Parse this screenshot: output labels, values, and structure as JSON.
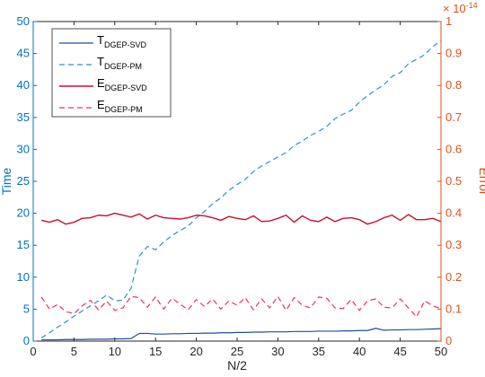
{
  "chart_data": {
    "type": "line",
    "xlabel": "N/2",
    "ylabel_left": "Time",
    "ylabel_right": "Error",
    "right_axis_exponent": "× 10",
    "right_axis_exponent_power": "-14",
    "xlim": [
      0,
      50
    ],
    "ylim_left": [
      0,
      50
    ],
    "ylim_right": [
      0,
      1
    ],
    "x_ticks": [
      0,
      5,
      10,
      15,
      20,
      25,
      30,
      35,
      40,
      45,
      50
    ],
    "y_left_ticks": [
      0,
      5,
      10,
      15,
      20,
      25,
      30,
      35,
      40,
      45,
      50
    ],
    "y_right_ticks": [
      0,
      0.1,
      0.2,
      0.3,
      0.4,
      0.5,
      0.6,
      0.7,
      0.8,
      0.9,
      1
    ],
    "grid": false,
    "legend_position": "top-left",
    "colors": {
      "left_axis": "#0072bd",
      "right_axis": "#d95319",
      "t_svd": "#1f4e9e",
      "t_pm": "#2b8fd6",
      "e_svd": "#c8102e",
      "e_pm": "#e8335a"
    },
    "x": [
      1,
      2,
      3,
      4,
      5,
      6,
      7,
      8,
      9,
      10,
      11,
      12,
      13,
      14,
      15,
      16,
      17,
      18,
      19,
      20,
      21,
      22,
      23,
      24,
      25,
      26,
      27,
      28,
      29,
      30,
      31,
      32,
      33,
      34,
      35,
      36,
      37,
      38,
      39,
      40,
      41,
      42,
      43,
      44,
      45,
      46,
      47,
      48,
      49,
      50
    ],
    "series": [
      {
        "name": "T",
        "name_sub": "DGEP-SVD",
        "axis": "left",
        "style": "solid",
        "values": [
          0.2,
          0.2,
          0.2,
          0.25,
          0.25,
          0.25,
          0.3,
          0.3,
          0.3,
          0.35,
          0.35,
          0.4,
          1.2,
          1.2,
          1.1,
          1.1,
          1.15,
          1.15,
          1.2,
          1.2,
          1.25,
          1.25,
          1.3,
          1.3,
          1.35,
          1.35,
          1.4,
          1.4,
          1.45,
          1.45,
          1.45,
          1.5,
          1.5,
          1.5,
          1.55,
          1.55,
          1.55,
          1.6,
          1.6,
          1.65,
          1.65,
          2.0,
          1.7,
          1.75,
          1.75,
          1.8,
          1.8,
          1.85,
          1.9,
          1.95
        ]
      },
      {
        "name": "T",
        "name_sub": "DGEP-PM",
        "axis": "left",
        "style": "dashed",
        "values": [
          0.5,
          1.3,
          2.2,
          3.0,
          3.9,
          4.7,
          5.5,
          6.3,
          7.2,
          6.3,
          6.4,
          8.3,
          13.3,
          14.8,
          14.3,
          15.5,
          16.5,
          17.3,
          18.0,
          19.3,
          20.3,
          21.5,
          22.4,
          23.6,
          24.5,
          25.3,
          26.5,
          27.4,
          28.1,
          28.8,
          29.5,
          30.6,
          31.3,
          32.2,
          32.8,
          33.6,
          34.8,
          35.5,
          36.1,
          37.4,
          38.4,
          39.3,
          40.1,
          41.4,
          42.0,
          43.4,
          44.1,
          44.8,
          46.1,
          47.0
        ]
      },
      {
        "name": "E",
        "name_sub": "DGEP-SVD",
        "axis": "right",
        "style": "solid",
        "values": [
          0.378,
          0.372,
          0.38,
          0.366,
          0.372,
          0.384,
          0.386,
          0.394,
          0.392,
          0.4,
          0.394,
          0.388,
          0.398,
          0.382,
          0.394,
          0.386,
          0.384,
          0.382,
          0.386,
          0.394,
          0.392,
          0.386,
          0.378,
          0.39,
          0.384,
          0.38,
          0.392,
          0.374,
          0.376,
          0.384,
          0.394,
          0.372,
          0.392,
          0.378,
          0.374,
          0.388,
          0.374,
          0.384,
          0.386,
          0.38,
          0.366,
          0.374,
          0.386,
          0.394,
          0.378,
          0.396,
          0.38,
          0.38,
          0.384,
          0.374
        ]
      },
      {
        "name": "E",
        "name_sub": "DGEP-PM",
        "axis": "right",
        "style": "dashed",
        "values": [
          0.138,
          0.1,
          0.115,
          0.092,
          0.086,
          0.11,
          0.128,
          0.098,
          0.125,
          0.096,
          0.104,
          0.14,
          0.136,
          0.106,
          0.138,
          0.1,
          0.134,
          0.116,
          0.098,
          0.13,
          0.108,
          0.132,
          0.1,
          0.126,
          0.112,
          0.136,
          0.098,
          0.132,
          0.104,
          0.14,
          0.096,
          0.136,
          0.112,
          0.104,
          0.138,
          0.134,
          0.104,
          0.102,
          0.13,
          0.096,
          0.126,
          0.132,
          0.106,
          0.104,
          0.132,
          0.104,
          0.076,
          0.126,
          0.11,
          0.102
        ]
      }
    ]
  }
}
